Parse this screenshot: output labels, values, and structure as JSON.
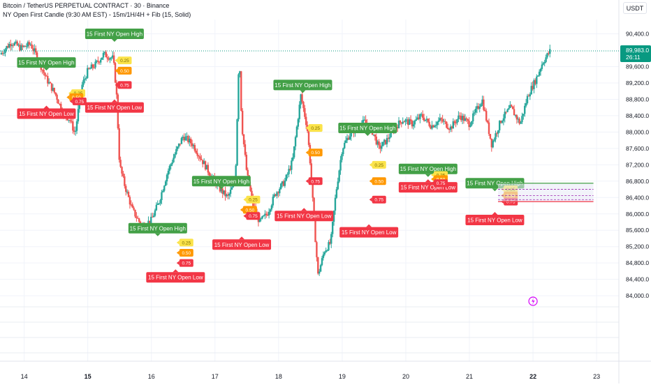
{
  "header": {
    "title": "Bitcoin / TetherUS PERPETUAL CONTRACT · 30 · Binance",
    "indicator": "NY Open First Candle (9:30 AM EST) - 15m/1H/4H + Fib (15, Solid)",
    "currency": "USDT"
  },
  "colors": {
    "up": "#26a69a",
    "down": "#ef5350",
    "green_label": "#43a047",
    "red_label": "#f23645",
    "fib_high": "#fbe34a",
    "fib_mid": "#ff9800",
    "price_tag": "#089981",
    "grid": "#f0f3fa",
    "axis_text": "#131722"
  },
  "chart_data": {
    "type": "candlestick",
    "x_axis_labels": [
      "14",
      "15",
      "16",
      "17",
      "18",
      "19",
      "20",
      "21",
      "22",
      "23"
    ],
    "y_ticks": [
      84000,
      84400,
      84800,
      85200,
      85600,
      86000,
      86400,
      86800,
      87200,
      87600,
      88000,
      88400,
      88800,
      89200,
      89600,
      90400
    ],
    "y_tick_labels": [
      "84,000.0",
      "84,400.0",
      "84,800.0",
      "85,200.0",
      "85,600.0",
      "86,000.0",
      "86,400.0",
      "86,800.0",
      "87,200.0",
      "87,600.0",
      "88,000.0",
      "88,400.0",
      "88,800.0",
      "89,200.0",
      "89,600.0",
      "90,400.0"
    ],
    "ylim": [
      83900,
      90750
    ],
    "xlim": [
      13.62,
      23.35
    ],
    "last_price": {
      "label": "89,983.0",
      "countdown": "26:11",
      "value": 89983
    },
    "price_path": [
      [
        13.62,
        89900
      ],
      [
        13.8,
        90200
      ],
      [
        13.95,
        90050
      ],
      [
        14.1,
        90150
      ],
      [
        14.2,
        89850
      ],
      [
        14.35,
        89300
      ],
      [
        14.5,
        88900
      ],
      [
        14.6,
        88500
      ],
      [
        14.72,
        88300
      ],
      [
        14.8,
        87950
      ],
      [
        14.9,
        89100
      ],
      [
        15.0,
        89500
      ],
      [
        15.12,
        89650
      ],
      [
        15.25,
        89900
      ],
      [
        15.4,
        89800
      ],
      [
        15.45,
        89000
      ],
      [
        15.5,
        87200
      ],
      [
        15.58,
        86700
      ],
      [
        15.7,
        86100
      ],
      [
        15.85,
        85700
      ],
      [
        16.0,
        85850
      ],
      [
        16.12,
        86300
      ],
      [
        16.25,
        87000
      ],
      [
        16.38,
        87500
      ],
      [
        16.5,
        87900
      ],
      [
        16.65,
        87700
      ],
      [
        16.8,
        87300
      ],
      [
        16.95,
        86900
      ],
      [
        17.08,
        86600
      ],
      [
        17.2,
        86400
      ],
      [
        17.32,
        86800
      ],
      [
        17.38,
        90000
      ],
      [
        17.42,
        88200
      ],
      [
        17.5,
        87000
      ],
      [
        17.6,
        86200
      ],
      [
        17.7,
        85800
      ],
      [
        17.82,
        86000
      ],
      [
        17.95,
        86500
      ],
      [
        18.1,
        86800
      ],
      [
        18.22,
        87300
      ],
      [
        18.35,
        88900
      ],
      [
        18.45,
        88100
      ],
      [
        18.5,
        87200
      ],
      [
        18.55,
        86000
      ],
      [
        18.62,
        84500
      ],
      [
        18.72,
        85100
      ],
      [
        18.82,
        85300
      ],
      [
        18.9,
        86500
      ],
      [
        19.0,
        87600
      ],
      [
        19.1,
        87900
      ],
      [
        19.22,
        88100
      ],
      [
        19.35,
        88250
      ],
      [
        19.48,
        88000
      ],
      [
        19.58,
        87600
      ],
      [
        19.7,
        87800
      ],
      [
        19.82,
        88100
      ],
      [
        19.95,
        88300
      ],
      [
        20.1,
        88200
      ],
      [
        20.25,
        88400
      ],
      [
        20.4,
        88150
      ],
      [
        20.55,
        88300
      ],
      [
        20.7,
        88100
      ],
      [
        20.85,
        88400
      ],
      [
        21.0,
        88200
      ],
      [
        21.1,
        88500
      ],
      [
        21.2,
        88800
      ],
      [
        21.35,
        87700
      ],
      [
        21.5,
        88300
      ],
      [
        21.65,
        88600
      ],
      [
        21.8,
        88200
      ],
      [
        21.92,
        88900
      ],
      [
        22.05,
        89300
      ],
      [
        22.15,
        89700
      ],
      [
        22.27,
        89983
      ]
    ]
  },
  "annotations": {
    "high_label": "15 First NY Open High",
    "low_label": "15 First NY Open Low",
    "fib_levels": [
      "0.25",
      "0.50",
      "0.75"
    ],
    "days": [
      {
        "high": 89000,
        "low": 88700,
        "hl": [
          14.35,
          89700
        ],
        "ll": [
          14.35,
          88450
        ],
        "fibs": [
          [
            14.85,
            88950
          ],
          [
            14.82,
            88850
          ],
          [
            14.87,
            88750
          ]
        ]
      },
      {
        "high": 89300,
        "low": 88450,
        "hl": [
          15.42,
          90400
        ],
        "ll": [
          15.42,
          88600
        ],
        "fibs": [
          [
            15.58,
            89750
          ],
          [
            15.58,
            89500
          ],
          [
            15.58,
            89150
          ]
        ]
      },
      {
        "high": 85650,
        "low": 84700,
        "hl": [
          16.1,
          85650
        ],
        "ll": [
          16.38,
          84450
        ],
        "fibs": [
          [
            16.55,
            85300
          ],
          [
            16.55,
            85050
          ],
          [
            16.55,
            84800
          ]
        ]
      },
      {
        "high": 86800,
        "low": 85650,
        "hl": [
          17.1,
          86800
        ],
        "ll": [
          17.42,
          85250
        ],
        "fibs": [
          [
            17.6,
            86350
          ],
          [
            17.55,
            86100
          ],
          [
            17.6,
            85950
          ]
        ]
      },
      {
        "high": 89150,
        "low": 86400,
        "hl": [
          18.38,
          89150
        ],
        "ll": [
          18.4,
          85950
        ],
        "fibs": [
          [
            18.58,
            88100
          ],
          [
            18.58,
            87500
          ],
          [
            18.58,
            86800
          ]
        ]
      },
      {
        "high": 88100,
        "low": 85650,
        "hl": [
          19.4,
          88100
        ],
        "ll": [
          19.42,
          85550
        ],
        "fibs": [
          [
            19.58,
            87200
          ],
          [
            19.58,
            86800
          ],
          [
            19.58,
            86350
          ]
        ]
      },
      {
        "high": 87100,
        "low": 86750,
        "hl": [
          20.35,
          87100
        ],
        "ll": [
          20.35,
          86650
        ],
        "fibs": [
          [
            20.55,
            86950
          ],
          [
            20.55,
            86850
          ],
          [
            20.55,
            86750
          ]
        ]
      },
      {
        "high": 86750,
        "low": 86300,
        "hl": [
          21.4,
          86750
        ],
        "ll": [
          21.4,
          85850
        ],
        "fibs": [
          [
            21.65,
            86600
          ],
          [
            21.65,
            86450
          ],
          [
            21.65,
            86300
          ]
        ]
      }
    ]
  }
}
